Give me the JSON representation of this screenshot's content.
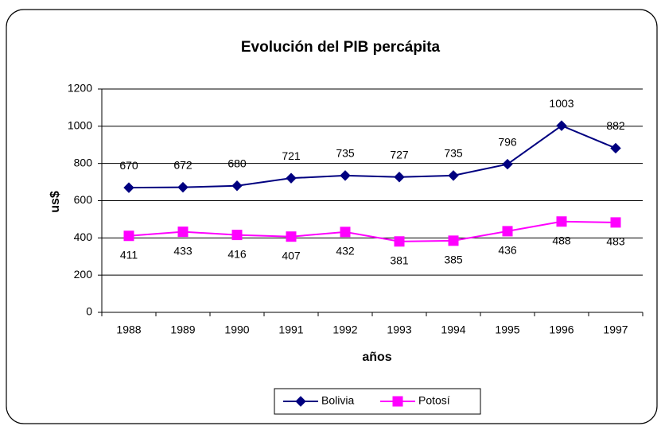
{
  "chart_data": {
    "type": "line",
    "title": "Evolución del PIB percápita",
    "xlabel": "años",
    "ylabel": "us$",
    "categories": [
      "1988",
      "1989",
      "1990",
      "1991",
      "1992",
      "1993",
      "1994",
      "1995",
      "1996",
      "1997"
    ],
    "series": [
      {
        "name": "Bolivia",
        "color": "#000080",
        "marker": "diamond",
        "values": [
          670,
          672,
          680,
          721,
          735,
          727,
          735,
          796,
          1003,
          882
        ]
      },
      {
        "name": "Potosí",
        "color": "#ff00ff",
        "marker": "square",
        "values": [
          411,
          433,
          416,
          407,
          432,
          381,
          385,
          436,
          488,
          483
        ]
      }
    ],
    "ylim": [
      0,
      1200
    ],
    "yticks": [
      0,
      200,
      400,
      600,
      800,
      1000,
      1200
    ],
    "grid": true,
    "legend": "bottom"
  }
}
